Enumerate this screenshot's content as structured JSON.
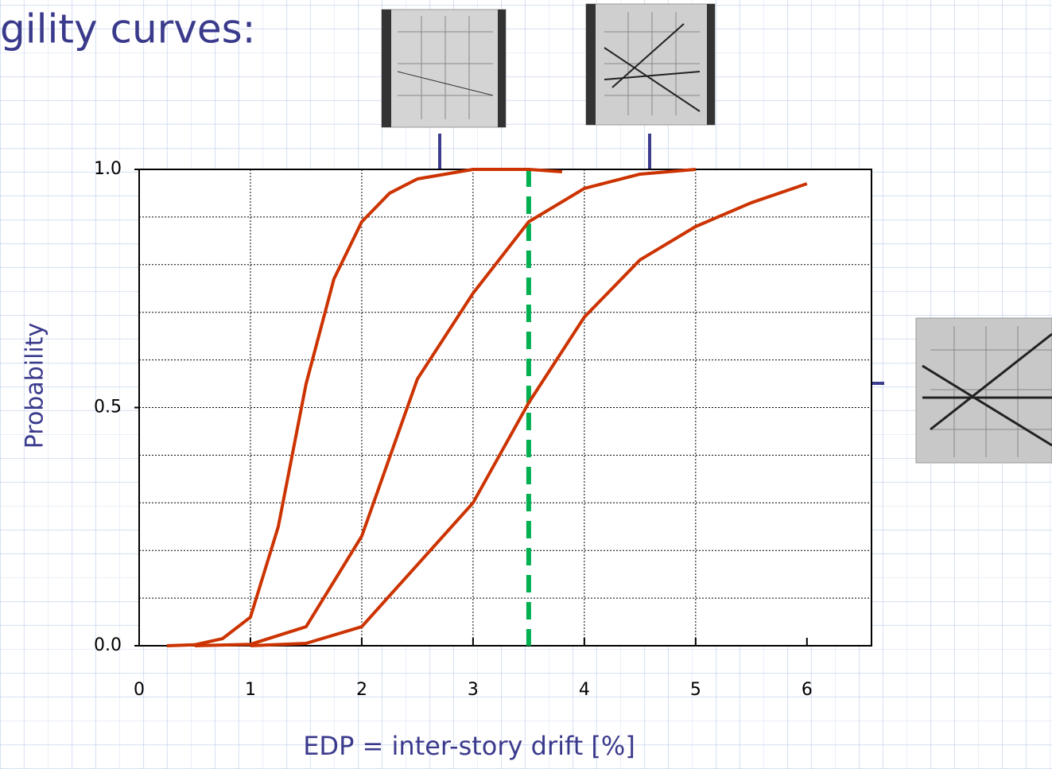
{
  "chart_data": {
    "type": "line",
    "title": "gility curves:",
    "xlabel": "EDP = inter-story drift [%]",
    "ylabel": "Probability",
    "xlim": [
      0,
      6.58
    ],
    "ylim": [
      0,
      1
    ],
    "xticks": [
      0,
      1,
      2,
      3,
      4,
      5,
      6
    ],
    "yticks": [
      {
        "value": 0,
        "label": "0.0"
      },
      {
        "value": 0.5,
        "label": "0.5"
      },
      {
        "value": 1,
        "label": "1.0"
      }
    ],
    "xgrid": [
      1,
      2,
      3,
      4,
      5
    ],
    "ygrid": [
      0.1,
      0.2,
      0.3,
      0.4,
      0.5,
      0.6,
      0.7,
      0.8,
      0.9
    ],
    "grid": true,
    "reference_line": {
      "x": 3.5,
      "color": "#00b050"
    },
    "series": [
      {
        "color": "#cc3300",
        "x": [
          0.25,
          0.5,
          0.75,
          1.0,
          1.25,
          1.5,
          1.75,
          2.0,
          2.25,
          2.5,
          3.0,
          3.5,
          3.8
        ],
        "values": [
          0,
          0.002,
          0.015,
          0.06,
          0.25,
          0.55,
          0.77,
          0.89,
          0.95,
          0.98,
          1.0,
          1.0,
          0.995
        ]
      },
      {
        "color": "#cc3300",
        "x": [
          0.5,
          1.0,
          1.5,
          2.0,
          2.5,
          3.0,
          3.5,
          4.0,
          4.5,
          5.0
        ],
        "values": [
          0,
          0.003,
          0.04,
          0.23,
          0.56,
          0.74,
          0.89,
          0.96,
          0.99,
          1.0
        ]
      },
      {
        "color": "#cc3300",
        "x": [
          1.0,
          1.5,
          2.0,
          2.5,
          3.0,
          3.5,
          4.0,
          4.5,
          5.0,
          5.5,
          6.0
        ],
        "values": [
          0,
          0.005,
          0.04,
          0.17,
          0.3,
          0.51,
          0.69,
          0.81,
          0.88,
          0.93,
          0.97
        ]
      }
    ]
  }
}
